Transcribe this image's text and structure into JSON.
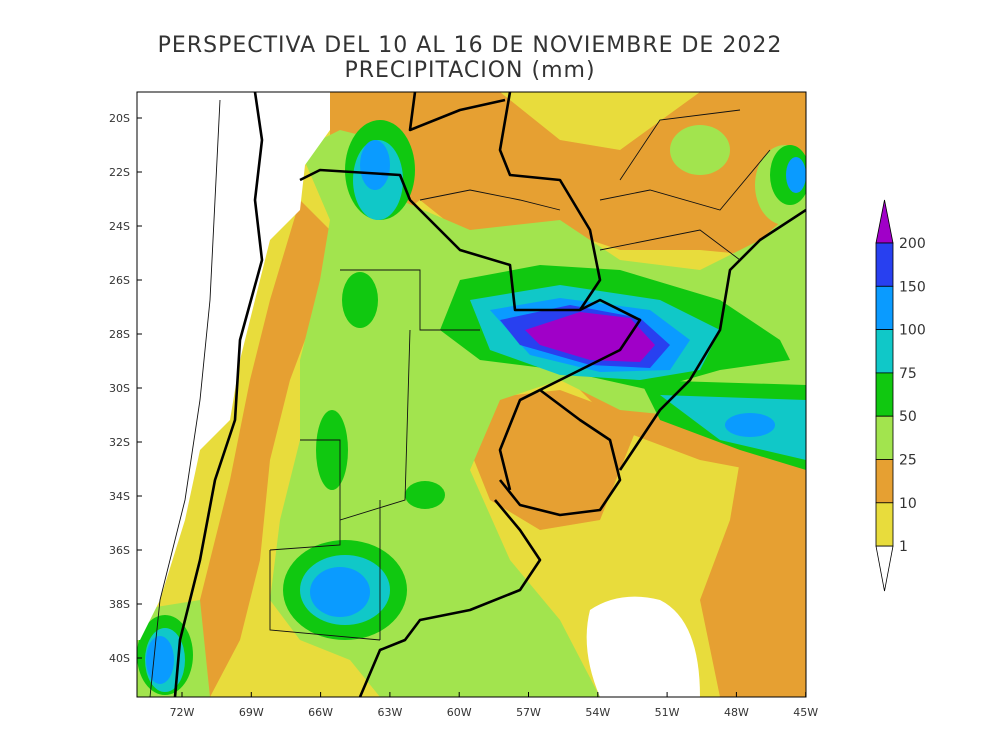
{
  "title": "PERSPECTIVA DEL 10 AL 16 DE NOVIEMBRE DE 2022",
  "subtitle": "PRECIPITACION (mm)",
  "lon_labels": [
    "72W",
    "69W",
    "66W",
    "63W",
    "60W",
    "57W",
    "54W",
    "51W",
    "48W",
    "45W"
  ],
  "lat_labels": [
    "20S",
    "22S",
    "24S",
    "26S",
    "28S",
    "30S",
    "32S",
    "34S",
    "36S",
    "38S",
    "40S"
  ],
  "colorbar": {
    "levels": [
      200,
      150,
      100,
      75,
      50,
      25,
      10,
      1
    ],
    "colors": [
      "#a000c8",
      "#2840f0",
      "#0a9bff",
      "#10c8c8",
      "#10c810",
      "#a2e44e",
      "#e6a032",
      "#e8dc3c",
      "#ffffff"
    ]
  }
}
